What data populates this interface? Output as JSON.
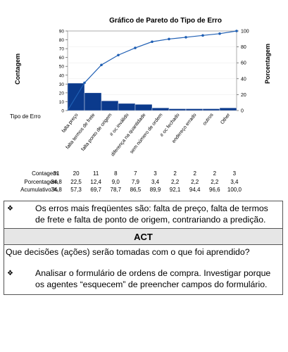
{
  "chart_data": {
    "type": "bar",
    "title": "Gráfico de Pareto do Tipo de Erro",
    "ylabel": "Contagem",
    "y2label": "Porcentagem",
    "xlabel": "Tipo de Erro",
    "categories": [
      "falta preço",
      "falta termos de frete",
      "falta ponto de origem",
      "# oc inválido",
      "diferença na quantidade",
      "sem número de ordem",
      "# oc fechado",
      "endereço errado",
      "outros",
      "Other"
    ],
    "series": [
      {
        "values": [
          31,
          20,
          11,
          8,
          7,
          3,
          2,
          2,
          2,
          3
        ]
      }
    ],
    "cumulative_percent": [
      34.8,
      57.3,
      69.7,
      78.7,
      86.5,
      89.9,
      92.1,
      94.4,
      96.6,
      100.0
    ],
    "ylim": [
      0,
      90
    ],
    "y2lim": [
      0,
      100
    ],
    "yticks": [
      "0",
      "10",
      "20",
      "30",
      "40",
      "50",
      "60",
      "70",
      "80",
      "90"
    ],
    "y2ticks": [
      "0",
      "20",
      "40",
      "60",
      "80",
      "100"
    ],
    "table": {
      "row_labels": [
        "Contagem",
        "Porcentagem",
        "Acumulativo %"
      ],
      "counts": [
        "31",
        "20",
        "11",
        "8",
        "7",
        "3",
        "2",
        "2",
        "2",
        "3"
      ],
      "percents": [
        "34,8",
        "22,5",
        "12,4",
        "9,0",
        "7,9",
        "3,4",
        "2,2",
        "2,2",
        "2,2",
        "3,4"
      ],
      "cumulative": [
        "34,8",
        "57,3",
        "69,7",
        "78,7",
        "86,5",
        "89,9",
        "92,1",
        "94,4",
        "96,6",
        "100,0"
      ]
    },
    "grid": true,
    "colors": {
      "bar": "#0b3a8c",
      "line": "#1f5fb4"
    }
  },
  "doc": {
    "bullet_symbol": "❖",
    "finding": "Os erros mais freqüentes são: falta de preço, falta de termos de frete e falta de ponto de origem, contrariando a predição.",
    "act_header": "ACT",
    "question": "Que decisões (ações) serão tomadas com o que foi aprendido?",
    "action": "Analisar o formulário de ordens de compra. Investigar porque os agentes “esquecem” de preencher campos do formulário."
  }
}
